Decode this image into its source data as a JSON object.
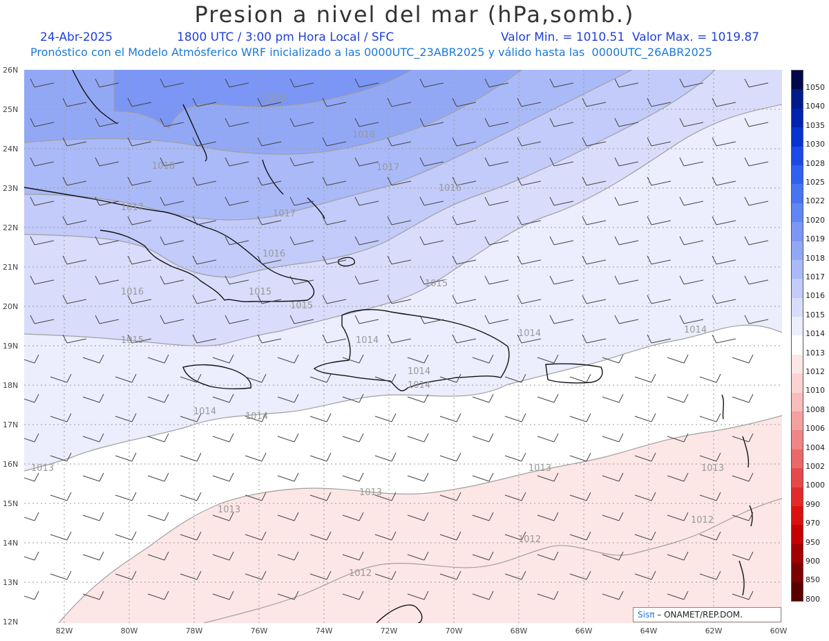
{
  "title": "Presion a nivel del mar (hPa,somb.)",
  "header": {
    "date": "24-Abr-2025",
    "time": "1800 UTC / 3:00 pm Hora Local / SFC",
    "stats": "Valor Min. = 1010.51  Valor Max. = 1019.87",
    "model_line": "Pronóstico con el Modelo Atmósferico WRF inicializado a las 0000UTC_23ABR2025 y válido hasta las  0000UTC_26ABR2025"
  },
  "axes": {
    "lat_labels": [
      "26N",
      "25N",
      "24N",
      "23N",
      "22N",
      "21N",
      "20N",
      "19N",
      "18N",
      "17N",
      "16N",
      "15N",
      "14N",
      "13N",
      "12N"
    ],
    "lon_labels": [
      "82W",
      "80W",
      "78W",
      "76W",
      "74W",
      "72W",
      "70W",
      "68W",
      "66W",
      "64W",
      "62W",
      "60W"
    ]
  },
  "colorbar": {
    "levels": [
      "1050",
      "1040",
      "1035",
      "1030",
      "1028",
      "1025",
      "1022",
      "1020",
      "1019",
      "1018",
      "1017",
      "1016",
      "1015",
      "1014",
      "1013",
      "1012",
      "1010",
      "1008",
      "1006",
      "1004",
      "1002",
      "1000",
      "990",
      "970",
      "950",
      "900",
      "850",
      "800"
    ],
    "colors": [
      "#00084a",
      "#001a8a",
      "#0022b0",
      "#0833d0",
      "#1a4ae8",
      "#2f61f0",
      "#4774f2",
      "#5f86f4",
      "#7b96f4",
      "#93a8f5",
      "#aab9f7",
      "#c2cbf9",
      "#d9ddfb",
      "#ecedfd",
      "#ffffff",
      "#fde6e6",
      "#fcd3d3",
      "#f8bcbc",
      "#f4a0a0",
      "#ef8585",
      "#ea6868",
      "#e64949",
      "#e22a2a",
      "#dd1010",
      "#c40000",
      "#a00000",
      "#7d0000",
      "#5a0000"
    ]
  },
  "contour_labels": [
    "1019",
    "1018",
    "1018",
    "1017",
    "1017",
    "1017",
    "1016",
    "1016",
    "1016",
    "1015",
    "1015",
    "1015",
    "1015",
    "1014",
    "1014",
    "1014",
    "1014",
    "1014",
    "1014",
    "1014",
    "1013",
    "1013",
    "1013",
    "1013",
    "1013",
    "1012",
    "1012",
    "1012"
  ],
  "credit": {
    "brand": "Sisπ",
    "org": " – ONAMET/REP.DOM."
  }
}
